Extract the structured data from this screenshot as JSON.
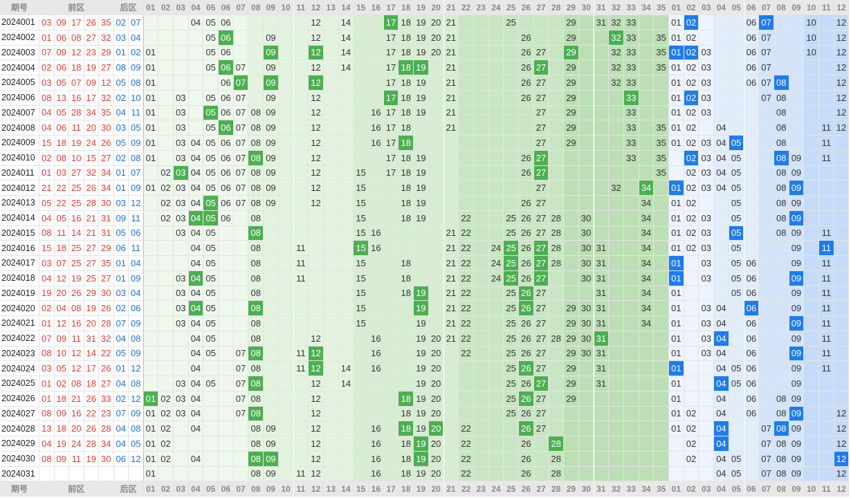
{
  "headers": {
    "issue": "期号",
    "front": "前区",
    "back": "后区"
  },
  "front_cols": [
    "01",
    "02",
    "03",
    "04",
    "05",
    "06",
    "07",
    "08",
    "09",
    "10",
    "11",
    "12",
    "13",
    "14",
    "15",
    "16",
    "17",
    "18",
    "19",
    "20",
    "21",
    "22",
    "23",
    "24",
    "25",
    "26",
    "27",
    "28",
    "29",
    "30",
    "31",
    "32",
    "33",
    "34",
    "35"
  ],
  "back_cols": [
    "01",
    "02",
    "03",
    "04",
    "05",
    "06",
    "07",
    "08",
    "09",
    "10",
    "11",
    "12"
  ],
  "colors": {
    "front_text": "#e53a32",
    "back_text": "#1e6fd9",
    "front_hit": "#4caf50",
    "back_hit": "#1e7bf0"
  },
  "rows": [
    {
      "issue": "2024001",
      "front": [
        "03",
        "09",
        "17",
        "26",
        "35"
      ],
      "back": [
        "02",
        "07"
      ],
      "fshow": [
        4,
        5,
        6,
        12,
        14,
        17,
        18,
        19,
        20,
        21,
        25,
        29,
        31,
        32,
        33
      ],
      "bshow": [
        1,
        2,
        6,
        7,
        10,
        12
      ]
    },
    {
      "issue": "2024002",
      "front": [
        "01",
        "06",
        "08",
        "27",
        "32"
      ],
      "back": [
        "03",
        "04"
      ],
      "fshow": [
        5,
        6,
        9,
        12,
        14,
        17,
        18,
        19,
        20,
        21,
        26,
        29,
        32,
        33,
        35
      ],
      "bshow": [
        1,
        2,
        6,
        7,
        10,
        12
      ]
    },
    {
      "issue": "2024003",
      "front": [
        "07",
        "09",
        "12",
        "23",
        "29"
      ],
      "back": [
        "01",
        "02"
      ],
      "fshow": [
        1,
        5,
        6,
        9,
        12,
        14,
        17,
        18,
        19,
        20,
        21,
        26,
        27,
        29,
        32,
        33,
        35
      ],
      "bshow": [
        1,
        2,
        3,
        6,
        7,
        10,
        12
      ]
    },
    {
      "issue": "2024004",
      "front": [
        "02",
        "06",
        "18",
        "19",
        "27"
      ],
      "back": [
        "08",
        "09"
      ],
      "fshow": [
        1,
        5,
        6,
        7,
        9,
        12,
        14,
        17,
        18,
        19,
        21,
        26,
        27,
        29,
        32,
        33,
        35
      ],
      "bshow": [
        1,
        2,
        3,
        6,
        7,
        12
      ]
    },
    {
      "issue": "2024005",
      "front": [
        "03",
        "05",
        "07",
        "09",
        "12"
      ],
      "back": [
        "05",
        "08"
      ],
      "fshow": [
        1,
        6,
        7,
        9,
        12,
        17,
        18,
        19,
        21,
        26,
        27,
        29,
        32,
        33
      ],
      "bshow": [
        1,
        2,
        3,
        6,
        7,
        8,
        12
      ]
    },
    {
      "issue": "2024006",
      "front": [
        "08",
        "13",
        "16",
        "17",
        "32"
      ],
      "back": [
        "02",
        "10"
      ],
      "fshow": [
        1,
        3,
        5,
        6,
        7,
        9,
        12,
        17,
        18,
        19,
        21,
        26,
        27,
        29,
        33
      ],
      "bshow": [
        1,
        2,
        3,
        7,
        8,
        12
      ]
    },
    {
      "issue": "2024007",
      "front": [
        "04",
        "05",
        "28",
        "34",
        "35"
      ],
      "back": [
        "04",
        "11"
      ],
      "fshow": [
        1,
        3,
        5,
        6,
        7,
        8,
        9,
        12,
        16,
        17,
        18,
        19,
        21,
        27,
        29,
        33
      ],
      "bshow": [
        1,
        2,
        3,
        8,
        12
      ]
    },
    {
      "issue": "2024008",
      "front": [
        "04",
        "06",
        "11",
        "20",
        "30"
      ],
      "back": [
        "03",
        "05"
      ],
      "fshow": [
        1,
        3,
        5,
        6,
        7,
        8,
        9,
        12,
        16,
        17,
        18,
        21,
        27,
        29,
        33,
        35
      ],
      "bshow": [
        1,
        2,
        4,
        8,
        11,
        12
      ]
    },
    {
      "issue": "2024009",
      "front": [
        "15",
        "18",
        "19",
        "24",
        "26"
      ],
      "back": [
        "05",
        "09"
      ],
      "fshow": [
        1,
        3,
        4,
        5,
        6,
        7,
        8,
        9,
        12,
        16,
        17,
        18,
        27,
        29,
        33,
        35
      ],
      "bshow": [
        1,
        2,
        3,
        4,
        5,
        8,
        11
      ]
    },
    {
      "issue": "2024010",
      "front": [
        "02",
        "08",
        "10",
        "15",
        "27"
      ],
      "back": [
        "02",
        "08"
      ],
      "fshow": [
        1,
        3,
        4,
        5,
        6,
        7,
        8,
        9,
        12,
        17,
        18,
        19,
        26,
        27,
        33,
        35
      ],
      "bshow": [
        2,
        3,
        4,
        5,
        8,
        9,
        11
      ]
    },
    {
      "issue": "2024011",
      "front": [
        "01",
        "03",
        "27",
        "32",
        "34"
      ],
      "back": [
        "01",
        "07"
      ],
      "fshow": [
        2,
        3,
        4,
        5,
        6,
        7,
        8,
        9,
        12,
        15,
        17,
        18,
        19,
        26,
        27,
        35
      ],
      "bshow": [
        2,
        3,
        4,
        5,
        8,
        9
      ]
    },
    {
      "issue": "2024012",
      "front": [
        "21",
        "22",
        "25",
        "26",
        "34"
      ],
      "back": [
        "01",
        "09"
      ],
      "fshow": [
        1,
        2,
        3,
        4,
        5,
        6,
        7,
        8,
        9,
        12,
        15,
        18,
        19,
        27,
        32,
        34
      ],
      "bshow": [
        1,
        2,
        3,
        4,
        5,
        8,
        9
      ]
    },
    {
      "issue": "2024013",
      "front": [
        "05",
        "22",
        "25",
        "28",
        "30"
      ],
      "back": [
        "03",
        "12"
      ],
      "fshow": [
        2,
        3,
        4,
        5,
        6,
        7,
        8,
        9,
        12,
        15,
        18,
        19,
        26,
        27,
        34
      ],
      "bshow": [
        1,
        2,
        5,
        8,
        9
      ]
    },
    {
      "issue": "2024014",
      "front": [
        "04",
        "05",
        "16",
        "21",
        "31"
      ],
      "back": [
        "09",
        "11"
      ],
      "fshow": [
        2,
        3,
        4,
        5,
        6,
        8,
        15,
        18,
        19,
        22,
        25,
        26,
        27,
        28,
        30,
        34
      ],
      "bshow": [
        1,
        2,
        3,
        5,
        8,
        9
      ]
    },
    {
      "issue": "2024015",
      "front": [
        "08",
        "11",
        "14",
        "21",
        "31"
      ],
      "back": [
        "05",
        "06"
      ],
      "fshow": [
        3,
        4,
        5,
        8,
        15,
        16,
        21,
        22,
        25,
        26,
        27,
        28,
        30,
        34
      ],
      "bshow": [
        1,
        2,
        3,
        5,
        8,
        9,
        11
      ]
    },
    {
      "issue": "2024016",
      "front": [
        "15",
        "18",
        "25",
        "27",
        "29"
      ],
      "back": [
        "06",
        "11"
      ],
      "fshow": [
        4,
        5,
        8,
        11,
        15,
        16,
        21,
        22,
        24,
        25,
        26,
        27,
        28,
        30,
        31,
        34
      ],
      "bshow": [
        1,
        2,
        3,
        5,
        9,
        11
      ]
    },
    {
      "issue": "2024017",
      "front": [
        "03",
        "07",
        "25",
        "27",
        "35"
      ],
      "back": [
        "01",
        "04"
      ],
      "fshow": [
        4,
        5,
        8,
        11,
        15,
        18,
        21,
        22,
        24,
        25,
        26,
        27,
        28,
        30,
        31,
        34
      ],
      "bshow": [
        1,
        3,
        5,
        6,
        9,
        11
      ]
    },
    {
      "issue": "2024018",
      "front": [
        "04",
        "12",
        "19",
        "25",
        "27"
      ],
      "back": [
        "01",
        "09"
      ],
      "fshow": [
        3,
        4,
        5,
        8,
        11,
        15,
        18,
        21,
        22,
        24,
        25,
        26,
        27,
        30,
        31,
        34
      ],
      "bshow": [
        1,
        3,
        5,
        6,
        9,
        11
      ]
    },
    {
      "issue": "2024019",
      "front": [
        "19",
        "20",
        "26",
        "29",
        "30"
      ],
      "back": [
        "03",
        "04"
      ],
      "fshow": [
        3,
        4,
        5,
        8,
        15,
        18,
        19,
        21,
        22,
        25,
        26,
        27,
        31,
        34
      ],
      "bshow": [
        1,
        5,
        6,
        9,
        11
      ]
    },
    {
      "issue": "2024020",
      "front": [
        "02",
        "04",
        "08",
        "19",
        "26"
      ],
      "back": [
        "02",
        "06"
      ],
      "fshow": [
        3,
        4,
        5,
        8,
        15,
        19,
        21,
        22,
        25,
        26,
        27,
        29,
        30,
        31,
        34
      ],
      "bshow": [
        1,
        3,
        4,
        6,
        9,
        11
      ]
    },
    {
      "issue": "2024021",
      "front": [
        "01",
        "12",
        "16",
        "20",
        "28"
      ],
      "back": [
        "07",
        "09"
      ],
      "fshow": [
        3,
        4,
        5,
        8,
        15,
        19,
        21,
        22,
        25,
        26,
        27,
        29,
        30,
        31,
        34
      ],
      "bshow": [
        1,
        3,
        4,
        6,
        9,
        11
      ]
    },
    {
      "issue": "2024022",
      "front": [
        "07",
        "09",
        "11",
        "31",
        "32"
      ],
      "back": [
        "04",
        "08"
      ],
      "fshow": [
        4,
        5,
        8,
        12,
        16,
        19,
        20,
        21,
        22,
        25,
        26,
        27,
        28,
        29,
        30,
        31
      ],
      "bshow": [
        1,
        3,
        4,
        6,
        9,
        11
      ]
    },
    {
      "issue": "2024023",
      "front": [
        "08",
        "10",
        "12",
        "14",
        "22"
      ],
      "back": [
        "05",
        "09"
      ],
      "fshow": [
        4,
        5,
        7,
        8,
        11,
        12,
        16,
        19,
        20,
        22,
        25,
        26,
        27,
        29,
        30,
        31
      ],
      "bshow": [
        1,
        3,
        4,
        6,
        9,
        11
      ]
    },
    {
      "issue": "2024024",
      "front": [
        "03",
        "05",
        "12",
        "17",
        "26"
      ],
      "back": [
        "01",
        "12"
      ],
      "fshow": [
        4,
        7,
        8,
        11,
        12,
        14,
        16,
        19,
        20,
        25,
        26,
        27,
        29,
        31
      ],
      "bshow": [
        1,
        4,
        5,
        6,
        9,
        11
      ]
    },
    {
      "issue": "2024025",
      "front": [
        "01",
        "02",
        "08",
        "18",
        "27"
      ],
      "back": [
        "04",
        "08"
      ],
      "fshow": [
        3,
        4,
        5,
        7,
        8,
        12,
        14,
        19,
        20,
        25,
        26,
        27,
        29,
        31
      ],
      "bshow": [
        1,
        4,
        5,
        6,
        9
      ]
    },
    {
      "issue": "2024026",
      "front": [
        "01",
        "18",
        "21",
        "26",
        "33"
      ],
      "back": [
        "02",
        "12"
      ],
      "fshow": [
        1,
        2,
        3,
        4,
        7,
        8,
        12,
        18,
        19,
        20,
        25,
        26,
        27,
        29
      ],
      "bshow": [
        1,
        4,
        6,
        8,
        9
      ]
    },
    {
      "issue": "2024027",
      "front": [
        "08",
        "09",
        "16",
        "22",
        "23"
      ],
      "back": [
        "07",
        "09"
      ],
      "fshow": [
        1,
        2,
        3,
        4,
        7,
        8,
        12,
        18,
        19,
        20,
        25,
        26,
        27
      ],
      "bshow": [
        1,
        2,
        4,
        6,
        8,
        9,
        12
      ]
    },
    {
      "issue": "2024028",
      "front": [
        "13",
        "18",
        "20",
        "26",
        "28"
      ],
      "back": [
        "04",
        "08"
      ],
      "fshow": [
        1,
        2,
        4,
        8,
        9,
        12,
        16,
        18,
        19,
        20,
        22,
        26,
        27
      ],
      "bshow": [
        1,
        2,
        4,
        7,
        8,
        9,
        12
      ]
    },
    {
      "issue": "2024029",
      "front": [
        "04",
        "19",
        "24",
        "28",
        "34"
      ],
      "back": [
        "04",
        "05"
      ],
      "fshow": [
        1,
        2,
        8,
        9,
        12,
        16,
        18,
        19,
        20,
        22,
        26,
        28
      ],
      "bshow": [
        2,
        4,
        7,
        8,
        9,
        12
      ]
    },
    {
      "issue": "2024030",
      "front": [
        "08",
        "09",
        "11",
        "19",
        "30"
      ],
      "back": [
        "06",
        "12"
      ],
      "fshow": [
        1,
        2,
        4,
        8,
        9,
        12,
        16,
        18,
        19,
        20,
        22,
        26,
        28
      ],
      "bshow": [
        2,
        4,
        5,
        7,
        8,
        9,
        12
      ]
    },
    {
      "issue": "2024031",
      "front": [],
      "back": [],
      "fshow": [
        1,
        8,
        9,
        11,
        12,
        16,
        18,
        19,
        20,
        22,
        26,
        28
      ],
      "bshow": [
        4,
        5,
        7,
        8,
        9,
        12
      ]
    }
  ],
  "hits": [
    {
      "f": [
        17
      ],
      "b": [
        2,
        7
      ]
    },
    {
      "f": [
        6,
        32
      ],
      "b": []
    },
    {
      "f": [
        9,
        12,
        29
      ],
      "b": [
        1,
        2
      ]
    },
    {
      "f": [
        6,
        18,
        19,
        27
      ],
      "b": []
    },
    {
      "f": [
        7,
        9,
        12
      ],
      "b": [
        8
      ]
    },
    {
      "f": [
        17,
        33
      ],
      "b": [
        2
      ]
    },
    {
      "f": [
        5
      ],
      "b": []
    },
    {
      "f": [
        6
      ],
      "b": []
    },
    {
      "f": [
        18
      ],
      "b": [
        5
      ]
    },
    {
      "f": [
        8,
        27
      ],
      "b": [
        2,
        8
      ]
    },
    {
      "f": [
        3,
        27
      ],
      "b": []
    },
    {
      "f": [
        34
      ],
      "b": [
        1,
        9
      ]
    },
    {
      "f": [
        5
      ],
      "b": []
    },
    {
      "f": [
        4,
        5
      ],
      "b": [
        9
      ]
    },
    {
      "f": [
        8
      ],
      "b": [
        5
      ]
    },
    {
      "f": [
        15,
        25,
        27
      ],
      "b": [
        11
      ]
    },
    {
      "f": [
        25,
        27
      ],
      "b": [
        1
      ]
    },
    {
      "f": [
        4,
        25,
        27
      ],
      "b": [
        1,
        9
      ]
    },
    {
      "f": [
        19,
        26
      ],
      "b": []
    },
    {
      "f": [
        4,
        8,
        19,
        26
      ],
      "b": [
        6
      ]
    },
    {
      "f": [],
      "b": [
        9
      ]
    },
    {
      "f": [
        31
      ],
      "b": [
        4
      ]
    },
    {
      "f": [
        8,
        12
      ],
      "b": [
        9
      ]
    },
    {
      "f": [
        12,
        26
      ],
      "b": [
        1
      ]
    },
    {
      "f": [
        8,
        27
      ],
      "b": [
        4
      ]
    },
    {
      "f": [
        1,
        18,
        26
      ],
      "b": []
    },
    {
      "f": [
        8
      ],
      "b": [
        9
      ]
    },
    {
      "f": [
        18,
        20,
        26
      ],
      "b": [
        4,
        8
      ]
    },
    {
      "f": [
        19,
        28
      ],
      "b": [
        4
      ]
    },
    {
      "f": [
        8,
        9,
        19
      ],
      "b": [
        12
      ]
    },
    {
      "f": [],
      "b": []
    }
  ]
}
